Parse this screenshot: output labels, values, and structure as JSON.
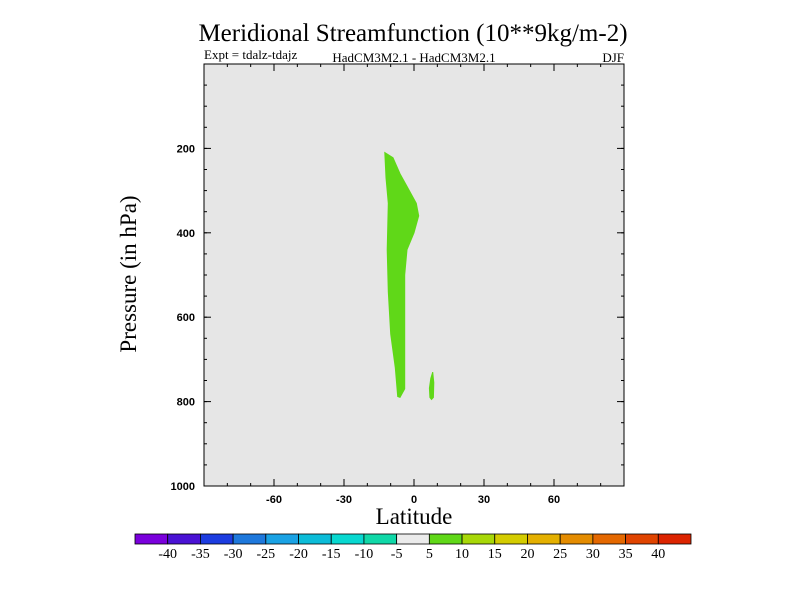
{
  "chart_data": {
    "type": "contour",
    "title": "Meridional Streamfunction (10**9kg/m-2)",
    "subtitle_left": "Expt = tdalz-tdajz",
    "subtitle_center": "HadCM3M2.1 - HadCM3M2.1",
    "subtitle_right": "DJF",
    "xlabel": "Latitude",
    "ylabel": "Pressure (in hPa)",
    "xlim": [
      -90,
      90
    ],
    "ylim": [
      1000,
      0
    ],
    "x_ticks": [
      -60,
      -30,
      0,
      30,
      60
    ],
    "x_tick_labels": [
      "-60",
      "-30",
      "0",
      "30",
      "60"
    ],
    "y_ticks": [
      200,
      400,
      600,
      800,
      1000
    ],
    "y_tick_labels": [
      "200",
      "400",
      "600",
      "800",
      "1000"
    ],
    "background_fill": "#e6e6e6",
    "contour_levels": [
      -40,
      -35,
      -30,
      -25,
      -20,
      -15,
      -10,
      -5,
      5,
      10,
      15,
      20,
      25,
      30,
      35,
      40
    ],
    "colorbar_labels": [
      "-40",
      "-35",
      "-30",
      "-25",
      "-20",
      "-15",
      "-10",
      "-5",
      "5",
      "10",
      "15",
      "20",
      "25",
      "30",
      "35",
      "40"
    ],
    "colorbar_colors": [
      "#7a00dc",
      "#4a12d4",
      "#1c3ce0",
      "#1e78dc",
      "#1aa2e4",
      "#0cbcd8",
      "#08d8d0",
      "#10d8a8",
      "#ebebeb",
      "#60d818",
      "#a8d808",
      "#d4cc00",
      "#e4b000",
      "#e48c00",
      "#e46800",
      "#e04400",
      "#dc2400"
    ],
    "regions": [
      {
        "name": "positive-5-10-main-cell",
        "level_range": [
          5,
          10
        ],
        "color": "#60d818",
        "outline": [
          [
            -12.5,
            210
          ],
          [
            -9,
            222
          ],
          [
            -6,
            260
          ],
          [
            -3,
            290
          ],
          [
            1,
            330
          ],
          [
            2,
            360
          ],
          [
            0,
            400
          ],
          [
            -3,
            440
          ],
          [
            -4,
            500
          ],
          [
            -4,
            600
          ],
          [
            -4,
            700
          ],
          [
            -4,
            770
          ],
          [
            -6,
            790
          ],
          [
            -7,
            788
          ],
          [
            -8,
            720
          ],
          [
            -10,
            640
          ],
          [
            -11,
            540
          ],
          [
            -11.5,
            440
          ],
          [
            -11,
            330
          ],
          [
            -12,
            270
          ]
        ]
      },
      {
        "name": "positive-5-10-small-cell",
        "level_range": [
          5,
          10
        ],
        "color": "#60d818",
        "outline": [
          [
            8,
            730
          ],
          [
            8.5,
            755
          ],
          [
            8.3,
            790
          ],
          [
            7.5,
            795
          ],
          [
            6.8,
            790
          ],
          [
            6.6,
            768
          ],
          [
            7.2,
            745
          ]
        ]
      }
    ]
  }
}
